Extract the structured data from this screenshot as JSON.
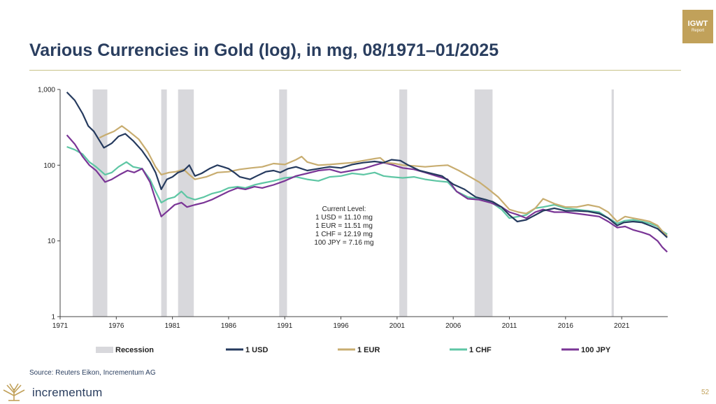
{
  "badge": {
    "line1": "IGWT",
    "line2": "Report"
  },
  "footer": {
    "source": "Source: Reuters Eikon, Incrementum AG",
    "logo": "incrementum",
    "page": "52"
  },
  "colors": {
    "title": "#2a3e5f",
    "usd": "#253a5e",
    "eur": "#c8ad70",
    "chf": "#5ec6a4",
    "jpy": "#7a3596",
    "recession": "#d8d8dc",
    "gold": "#c1a15a"
  },
  "chart_data": {
    "type": "line",
    "title": "Various Currencies in Gold (log), in mg, 08/1971–01/2025",
    "y_scale": "log",
    "ylim": [
      1,
      1000
    ],
    "xlim": [
      1971,
      2025.1
    ],
    "y_ticks": [
      {
        "v": 1,
        "label": "1"
      },
      {
        "v": 10,
        "label": "10"
      },
      {
        "v": 100,
        "label": "100"
      },
      {
        "v": 1000,
        "label": "1,000"
      }
    ],
    "x_ticks": [
      {
        "v": 1971,
        "label": "1971"
      },
      {
        "v": 1976,
        "label": "1976"
      },
      {
        "v": 1981,
        "label": "1981"
      },
      {
        "v": 1986,
        "label": "1986"
      },
      {
        "v": 1991,
        "label": "1991"
      },
      {
        "v": 1996,
        "label": "1996"
      },
      {
        "v": 2001,
        "label": "2001"
      },
      {
        "v": 2006,
        "label": "2006"
      },
      {
        "v": 2011,
        "label": "2011"
      },
      {
        "v": 2016,
        "label": "2016"
      },
      {
        "v": 2021,
        "label": "2021"
      }
    ],
    "recessions": [
      [
        1973.9,
        1975.2
      ],
      [
        1980.0,
        1980.5
      ],
      [
        1981.5,
        1982.9
      ],
      [
        1990.5,
        1991.2
      ],
      [
        2001.2,
        2001.9
      ],
      [
        2007.9,
        2009.5
      ],
      [
        2020.1,
        2020.3
      ]
    ],
    "legend": [
      {
        "key": "recession",
        "label": "Recession"
      },
      {
        "key": "usd",
        "label": "1 USD"
      },
      {
        "key": "eur",
        "label": "1 EUR"
      },
      {
        "key": "chf",
        "label": "1 CHF"
      },
      {
        "key": "jpy",
        "label": "100 JPY"
      }
    ],
    "annotation": [
      "Current Level:",
      "1 USD = 11.10 mg",
      "1 EUR = 11.51 mg",
      "1 CHF = 12.19 mg",
      "100 JPY = 7.16 mg"
    ],
    "series": [
      {
        "key": "usd",
        "name": "1 USD",
        "points": [
          [
            1971.6,
            920
          ],
          [
            1972.3,
            720
          ],
          [
            1973.0,
            480
          ],
          [
            1973.5,
            330
          ],
          [
            1974.0,
            280
          ],
          [
            1974.9,
            170
          ],
          [
            1975.6,
            195
          ],
          [
            1976.2,
            240
          ],
          [
            1976.8,
            260
          ],
          [
            1977.5,
            210
          ],
          [
            1978.3,
            155
          ],
          [
            1979.0,
            110
          ],
          [
            1979.5,
            80
          ],
          [
            1980.0,
            48
          ],
          [
            1980.5,
            65
          ],
          [
            1981.0,
            70
          ],
          [
            1981.5,
            80
          ],
          [
            1982.0,
            85
          ],
          [
            1982.5,
            100
          ],
          [
            1983.0,
            72
          ],
          [
            1983.6,
            78
          ],
          [
            1984.3,
            90
          ],
          [
            1985.0,
            100
          ],
          [
            1985.5,
            95
          ],
          [
            1986.0,
            90
          ],
          [
            1986.5,
            80
          ],
          [
            1987.0,
            70
          ],
          [
            1987.9,
            65
          ],
          [
            1988.5,
            72
          ],
          [
            1989.3,
            82
          ],
          [
            1990.0,
            85
          ],
          [
            1990.6,
            80
          ],
          [
            1991.3,
            90
          ],
          [
            1992.0,
            95
          ],
          [
            1993.0,
            85
          ],
          [
            1994.0,
            90
          ],
          [
            1995.0,
            95
          ],
          [
            1996.0,
            92
          ],
          [
            1997.0,
            102
          ],
          [
            1998.0,
            108
          ],
          [
            1999.0,
            112
          ],
          [
            1999.8,
            108
          ],
          [
            2000.5,
            118
          ],
          [
            2001.3,
            115
          ],
          [
            2002.0,
            100
          ],
          [
            2003.0,
            85
          ],
          [
            2004.0,
            78
          ],
          [
            2005.0,
            72
          ],
          [
            2006.0,
            56
          ],
          [
            2007.0,
            48
          ],
          [
            2008.0,
            38
          ],
          [
            2008.9,
            35
          ],
          [
            2009.5,
            33
          ],
          [
            2010.3,
            28
          ],
          [
            2011.0,
            22
          ],
          [
            2011.7,
            18
          ],
          [
            2012.5,
            19
          ],
          [
            2013.3,
            22
          ],
          [
            2014.0,
            25
          ],
          [
            2015.0,
            27
          ],
          [
            2016.0,
            25
          ],
          [
            2017.0,
            25
          ],
          [
            2018.0,
            24.5
          ],
          [
            2019.0,
            23
          ],
          [
            2019.8,
            20
          ],
          [
            2020.6,
            16
          ],
          [
            2021.2,
            17.5
          ],
          [
            2022.0,
            18
          ],
          [
            2022.8,
            17.5
          ],
          [
            2023.5,
            16
          ],
          [
            2024.2,
            14.5
          ],
          [
            2024.6,
            12.8
          ],
          [
            2025.05,
            11.1
          ]
        ]
      },
      {
        "key": "eur",
        "name": "1 EUR",
        "points": [
          [
            1974.5,
            230
          ],
          [
            1975.0,
            250
          ],
          [
            1975.8,
            280
          ],
          [
            1976.5,
            330
          ],
          [
            1977.0,
            290
          ],
          [
            1978.0,
            220
          ],
          [
            1978.8,
            150
          ],
          [
            1979.5,
            95
          ],
          [
            1980.0,
            75
          ],
          [
            1980.7,
            80
          ],
          [
            1981.3,
            82
          ],
          [
            1982.0,
            88
          ],
          [
            1982.5,
            75
          ],
          [
            1983.0,
            65
          ],
          [
            1984.0,
            70
          ],
          [
            1985.0,
            80
          ],
          [
            1986.0,
            82
          ],
          [
            1987.0,
            88
          ],
          [
            1988.0,
            92
          ],
          [
            1989.0,
            95
          ],
          [
            1990.0,
            105
          ],
          [
            1991.0,
            102
          ],
          [
            1992.0,
            118
          ],
          [
            1992.5,
            130
          ],
          [
            1993.0,
            110
          ],
          [
            1994.0,
            100
          ],
          [
            1995.0,
            102
          ],
          [
            1996.0,
            105
          ],
          [
            1997.0,
            108
          ],
          [
            1998.0,
            115
          ],
          [
            1999.0,
            122
          ],
          [
            1999.5,
            125
          ],
          [
            2000.0,
            108
          ],
          [
            2000.8,
            105
          ],
          [
            2001.5,
            100
          ],
          [
            2002.5,
            98
          ],
          [
            2003.5,
            95
          ],
          [
            2004.5,
            98
          ],
          [
            2005.5,
            100
          ],
          [
            2006.5,
            85
          ],
          [
            2007.5,
            70
          ],
          [
            2008.3,
            60
          ],
          [
            2009.0,
            50
          ],
          [
            2010.0,
            38
          ],
          [
            2011.0,
            26
          ],
          [
            2011.8,
            24
          ],
          [
            2012.5,
            23
          ],
          [
            2013.3,
            27
          ],
          [
            2014.0,
            36
          ],
          [
            2015.0,
            31
          ],
          [
            2016.0,
            28
          ],
          [
            2017.0,
            28
          ],
          [
            2018.0,
            30
          ],
          [
            2019.0,
            28
          ],
          [
            2019.8,
            24
          ],
          [
            2020.6,
            18
          ],
          [
            2021.3,
            21
          ],
          [
            2022.0,
            20
          ],
          [
            2022.8,
            19
          ],
          [
            2023.5,
            18
          ],
          [
            2024.2,
            16
          ],
          [
            2024.6,
            13.5
          ],
          [
            2025.05,
            11.51
          ]
        ]
      },
      {
        "key": "chf",
        "name": "1 CHF",
        "points": [
          [
            1971.6,
            175
          ],
          [
            1972.3,
            160
          ],
          [
            1973.0,
            140
          ],
          [
            1973.6,
            110
          ],
          [
            1974.2,
            95
          ],
          [
            1975.0,
            75
          ],
          [
            1975.6,
            80
          ],
          [
            1976.2,
            95
          ],
          [
            1976.9,
            110
          ],
          [
            1977.5,
            95
          ],
          [
            1978.3,
            90
          ],
          [
            1979.0,
            65
          ],
          [
            1979.5,
            45
          ],
          [
            1980.0,
            32
          ],
          [
            1980.6,
            36
          ],
          [
            1981.2,
            38
          ],
          [
            1981.8,
            45
          ],
          [
            1982.3,
            38
          ],
          [
            1983.0,
            35
          ],
          [
            1983.8,
            38
          ],
          [
            1984.5,
            42
          ],
          [
            1985.3,
            45
          ],
          [
            1986.0,
            50
          ],
          [
            1986.8,
            52
          ],
          [
            1987.5,
            50
          ],
          [
            1988.3,
            55
          ],
          [
            1989.0,
            58
          ],
          [
            1990.0,
            62
          ],
          [
            1991.0,
            68
          ],
          [
            1992.0,
            70
          ],
          [
            1993.0,
            65
          ],
          [
            1994.0,
            62
          ],
          [
            1995.0,
            70
          ],
          [
            1996.0,
            72
          ],
          [
            1997.0,
            78
          ],
          [
            1998.0,
            75
          ],
          [
            1999.0,
            80
          ],
          [
            1999.8,
            72
          ],
          [
            2000.5,
            70
          ],
          [
            2001.5,
            68
          ],
          [
            2002.5,
            70
          ],
          [
            2003.5,
            65
          ],
          [
            2004.5,
            62
          ],
          [
            2005.5,
            60
          ],
          [
            2006.3,
            45
          ],
          [
            2007.3,
            38
          ],
          [
            2008.3,
            36
          ],
          [
            2009.3,
            33
          ],
          [
            2010.3,
            26
          ],
          [
            2011.0,
            20
          ],
          [
            2011.8,
            21
          ],
          [
            2012.5,
            22
          ],
          [
            2013.3,
            27
          ],
          [
            2014.0,
            28
          ],
          [
            2015.0,
            30
          ],
          [
            2016.0,
            27
          ],
          [
            2017.0,
            26
          ],
          [
            2018.0,
            25
          ],
          [
            2019.0,
            24
          ],
          [
            2019.8,
            20
          ],
          [
            2020.6,
            17
          ],
          [
            2021.3,
            18.5
          ],
          [
            2022.0,
            19
          ],
          [
            2022.8,
            18
          ],
          [
            2023.5,
            17
          ],
          [
            2024.2,
            15.5
          ],
          [
            2024.6,
            13.5
          ],
          [
            2025.05,
            12.19
          ]
        ]
      },
      {
        "key": "jpy",
        "name": "100 JPY",
        "points": [
          [
            1971.6,
            250
          ],
          [
            1972.3,
            190
          ],
          [
            1973.0,
            130
          ],
          [
            1973.6,
            100
          ],
          [
            1974.2,
            85
          ],
          [
            1975.0,
            60
          ],
          [
            1975.6,
            65
          ],
          [
            1976.3,
            75
          ],
          [
            1977.0,
            85
          ],
          [
            1977.6,
            80
          ],
          [
            1978.3,
            90
          ],
          [
            1979.0,
            60
          ],
          [
            1979.5,
            35
          ],
          [
            1980.0,
            21
          ],
          [
            1980.6,
            25
          ],
          [
            1981.2,
            30
          ],
          [
            1981.8,
            32
          ],
          [
            1982.3,
            28
          ],
          [
            1983.0,
            30
          ],
          [
            1983.8,
            32
          ],
          [
            1984.5,
            35
          ],
          [
            1985.3,
            40
          ],
          [
            1986.0,
            45
          ],
          [
            1986.8,
            50
          ],
          [
            1987.5,
            48
          ],
          [
            1988.3,
            52
          ],
          [
            1989.0,
            50
          ],
          [
            1990.0,
            55
          ],
          [
            1991.0,
            62
          ],
          [
            1992.0,
            72
          ],
          [
            1993.0,
            78
          ],
          [
            1994.0,
            85
          ],
          [
            1995.0,
            88
          ],
          [
            1996.0,
            80
          ],
          [
            1997.0,
            85
          ],
          [
            1998.0,
            90
          ],
          [
            1999.0,
            100
          ],
          [
            1999.8,
            108
          ],
          [
            2000.5,
            102
          ],
          [
            2001.5,
            92
          ],
          [
            2002.5,
            88
          ],
          [
            2003.5,
            80
          ],
          [
            2004.5,
            72
          ],
          [
            2005.5,
            65
          ],
          [
            2006.3,
            45
          ],
          [
            2007.3,
            36
          ],
          [
            2008.3,
            35
          ],
          [
            2009.3,
            32
          ],
          [
            2010.3,
            28
          ],
          [
            2011.0,
            24
          ],
          [
            2011.8,
            22
          ],
          [
            2012.5,
            20
          ],
          [
            2013.3,
            24
          ],
          [
            2014.0,
            26
          ],
          [
            2015.0,
            24
          ],
          [
            2016.0,
            24
          ],
          [
            2017.0,
            23
          ],
          [
            2018.0,
            22
          ],
          [
            2019.0,
            21
          ],
          [
            2019.8,
            18
          ],
          [
            2020.6,
            15
          ],
          [
            2021.3,
            15.5
          ],
          [
            2022.0,
            14
          ],
          [
            2022.8,
            13
          ],
          [
            2023.5,
            12
          ],
          [
            2024.2,
            10
          ],
          [
            2024.6,
            8.3
          ],
          [
            2025.05,
            7.16
          ]
        ]
      }
    ]
  }
}
